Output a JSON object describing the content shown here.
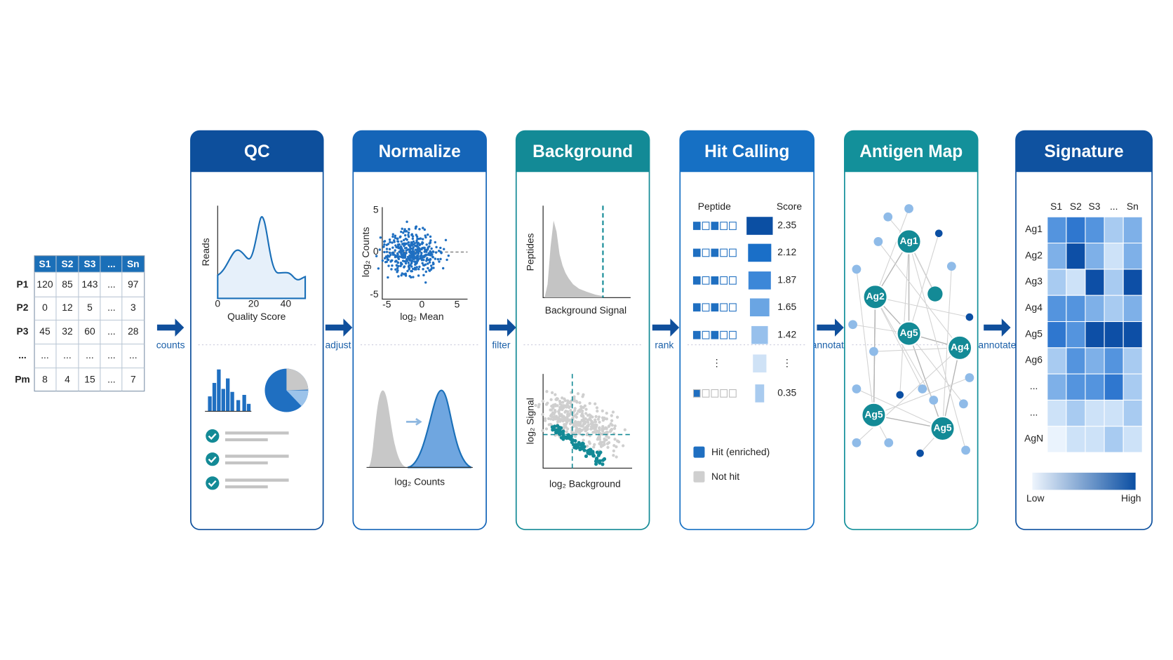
{
  "input_table": {
    "columns": [
      "S1",
      "S2",
      "S3",
      "...",
      "Sn"
    ],
    "rows": [
      {
        "label": "P1",
        "cells": [
          "120",
          "85",
          "143",
          "...",
          "97"
        ]
      },
      {
        "label": "P2",
        "cells": [
          "0",
          "12",
          "5",
          "...",
          "3"
        ]
      },
      {
        "label": "P3",
        "cells": [
          "45",
          "32",
          "60",
          "...",
          "28"
        ]
      },
      {
        "label": "...",
        "cells": [
          "...",
          "...",
          "...",
          "...",
          "..."
        ]
      },
      {
        "label": "Pm",
        "cells": [
          "8",
          "4",
          "15",
          "...",
          "7"
        ]
      }
    ]
  },
  "steps": [
    {
      "title": "QC"
    },
    {
      "title": "Normalize"
    },
    {
      "title": "Background"
    },
    {
      "title": "Hit Calling"
    },
    {
      "title": "Antigen Map"
    },
    {
      "title": "Signature"
    }
  ],
  "arrows": [
    "counts",
    "adjust",
    "filter",
    "rank",
    "annotate",
    "annotate"
  ],
  "qc": {
    "y_label": "Reads",
    "x_label": "Quality Score",
    "x_ticks": [
      "0",
      "20",
      "40"
    ]
  },
  "normalize": {
    "y_label": "log₂ Counts",
    "x_label": "log₂ Mean",
    "y_ticks": [
      "5",
      "0",
      "-5"
    ],
    "x_ticks": [
      "-5",
      "0",
      "5"
    ],
    "density_label": "log₂ Counts"
  },
  "background": {
    "hist_y_label": "Peptides",
    "hist_x_label": "Background Signal",
    "scatter_y_label": "log₂ Signal",
    "scatter_x_label": "log₂ Background"
  },
  "hit_calling": {
    "headers": [
      "Peptide",
      "Score"
    ],
    "scores": [
      "2.35",
      "2.12",
      "1.87",
      "1.65",
      "1.42",
      "⋮",
      "0.35"
    ],
    "legend": [
      "Hit (enriched)",
      "Not hit"
    ]
  },
  "antigen_map": {
    "nodes": [
      "Ag1",
      "Ag2",
      "Ag5",
      "Ag4",
      "Ag5",
      "Ag5"
    ]
  },
  "signature": {
    "columns": [
      "S1",
      "S2",
      "S3",
      "...",
      "Sn"
    ],
    "rows": [
      "Ag1",
      "Ag2",
      "Ag3",
      "Ag4",
      "Ag5",
      "Ag6",
      "...",
      "...",
      "AgN"
    ],
    "scale": [
      "Low",
      "High"
    ]
  }
}
